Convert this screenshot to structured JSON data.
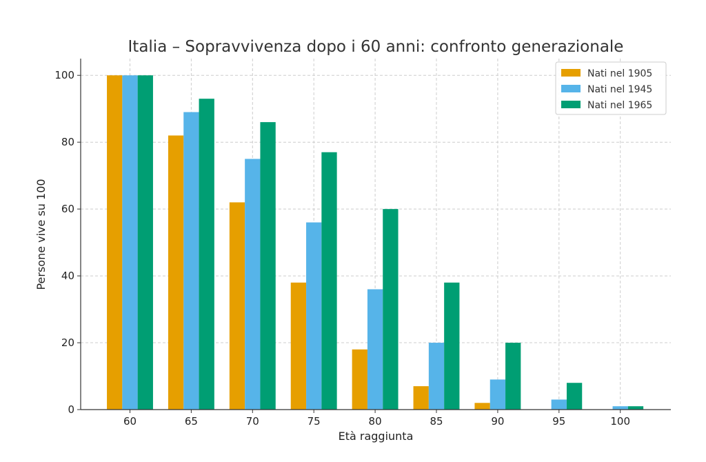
{
  "chart_data": {
    "type": "bar",
    "title": "Italia – Sopravvivenza dopo i 60 anni: confronto generazionale",
    "xlabel": "Età raggiunta",
    "ylabel": "Persone vive su 100",
    "categories": [
      "60",
      "65",
      "70",
      "75",
      "80",
      "85",
      "90",
      "95",
      "100"
    ],
    "ylim": [
      0,
      105
    ],
    "yticks": [
      0,
      20,
      40,
      60,
      80,
      100
    ],
    "grid": true,
    "legend_position": "top-right",
    "series": [
      {
        "name": "Nati nel 1905",
        "color": "#E69F00",
        "values": [
          100,
          82,
          62,
          38,
          18,
          7,
          2,
          0,
          0
        ]
      },
      {
        "name": "Nati nel 1945",
        "color": "#56B4E9",
        "values": [
          100,
          89,
          75,
          56,
          36,
          20,
          9,
          3,
          1
        ]
      },
      {
        "name": "Nati nel 1965",
        "color": "#009E73",
        "values": [
          100,
          93,
          86,
          77,
          60,
          38,
          20,
          8,
          1
        ]
      }
    ]
  }
}
